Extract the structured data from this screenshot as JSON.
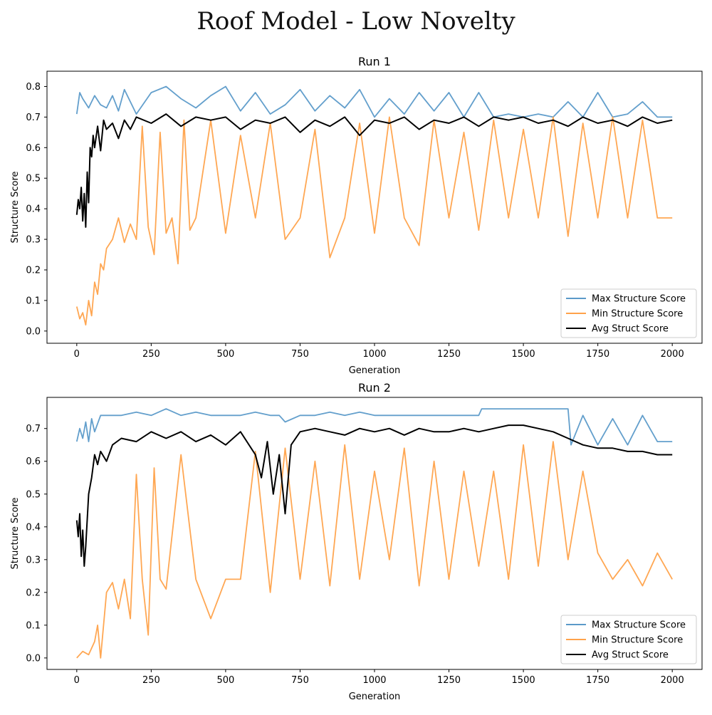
{
  "figure": {
    "title": "Roof Model - Low Novelty"
  },
  "colors": {
    "max": "#5b9ac9",
    "min": "#ffa24a",
    "avg": "#000000"
  },
  "chart_data": [
    {
      "type": "line",
      "title": "Run 1",
      "xlabel": "Generation",
      "ylabel": "Structure Score",
      "xlim": [
        -100,
        2100
      ],
      "ylim": [
        -0.04,
        0.85
      ],
      "xticks": [
        0,
        250,
        500,
        750,
        1000,
        1250,
        1500,
        1750,
        2000
      ],
      "yticks": [
        0.0,
        0.1,
        0.2,
        0.3,
        0.4,
        0.5,
        0.6,
        0.7,
        0.8
      ],
      "ytick_labels": [
        "0.0",
        "0.1",
        "0.2",
        "0.3",
        "0.4",
        "0.5",
        "0.6",
        "0.7",
        "0.8"
      ],
      "legend_position": "lower-right",
      "series": [
        {
          "name": "Max Structure Score",
          "key": "max",
          "x": [
            0,
            10,
            20,
            40,
            60,
            80,
            100,
            120,
            140,
            160,
            200,
            250,
            300,
            350,
            400,
            450,
            500,
            550,
            600,
            650,
            700,
            750,
            800,
            850,
            900,
            950,
            1000,
            1050,
            1100,
            1150,
            1200,
            1250,
            1300,
            1350,
            1400,
            1450,
            1500,
            1550,
            1600,
            1650,
            1700,
            1750,
            1800,
            1850,
            1900,
            1950,
            2000
          ],
          "y": [
            0.71,
            0.78,
            0.76,
            0.73,
            0.77,
            0.74,
            0.73,
            0.77,
            0.72,
            0.79,
            0.71,
            0.78,
            0.8,
            0.76,
            0.73,
            0.77,
            0.8,
            0.72,
            0.78,
            0.71,
            0.74,
            0.79,
            0.72,
            0.77,
            0.73,
            0.79,
            0.7,
            0.76,
            0.71,
            0.78,
            0.72,
            0.78,
            0.7,
            0.78,
            0.7,
            0.71,
            0.7,
            0.71,
            0.7,
            0.75,
            0.7,
            0.78,
            0.7,
            0.71,
            0.75,
            0.7,
            0.7
          ]
        },
        {
          "name": "Min Structure Score",
          "key": "min",
          "x": [
            0,
            10,
            20,
            30,
            40,
            50,
            60,
            70,
            80,
            90,
            100,
            120,
            140,
            160,
            180,
            200,
            220,
            240,
            260,
            280,
            300,
            320,
            340,
            360,
            380,
            400,
            450,
            500,
            550,
            600,
            650,
            700,
            750,
            800,
            850,
            900,
            950,
            1000,
            1050,
            1100,
            1150,
            1200,
            1250,
            1300,
            1350,
            1400,
            1450,
            1500,
            1550,
            1600,
            1650,
            1700,
            1750,
            1800,
            1850,
            1900,
            1950,
            2000
          ],
          "y": [
            0.08,
            0.04,
            0.06,
            0.02,
            0.1,
            0.05,
            0.16,
            0.12,
            0.22,
            0.2,
            0.27,
            0.3,
            0.37,
            0.29,
            0.35,
            0.3,
            0.67,
            0.34,
            0.25,
            0.65,
            0.32,
            0.37,
            0.22,
            0.69,
            0.33,
            0.37,
            0.69,
            0.32,
            0.64,
            0.37,
            0.68,
            0.3,
            0.37,
            0.66,
            0.24,
            0.37,
            0.68,
            0.32,
            0.7,
            0.37,
            0.28,
            0.69,
            0.37,
            0.65,
            0.33,
            0.69,
            0.37,
            0.66,
            0.37,
            0.7,
            0.31,
            0.68,
            0.37,
            0.7,
            0.37,
            0.69,
            0.37,
            0.37
          ]
        },
        {
          "name": "Avg Struct Score",
          "key": "avg",
          "x": [
            0,
            5,
            10,
            15,
            20,
            25,
            30,
            35,
            40,
            45,
            50,
            55,
            60,
            70,
            80,
            90,
            100,
            120,
            140,
            160,
            180,
            200,
            250,
            300,
            350,
            400,
            450,
            500,
            550,
            600,
            650,
            700,
            750,
            800,
            850,
            900,
            950,
            1000,
            1050,
            1100,
            1150,
            1200,
            1250,
            1300,
            1350,
            1400,
            1450,
            1500,
            1550,
            1600,
            1650,
            1700,
            1750,
            1800,
            1850,
            1900,
            1950,
            2000
          ],
          "y": [
            0.38,
            0.43,
            0.4,
            0.47,
            0.36,
            0.45,
            0.34,
            0.52,
            0.42,
            0.6,
            0.57,
            0.64,
            0.6,
            0.67,
            0.59,
            0.69,
            0.66,
            0.68,
            0.63,
            0.69,
            0.66,
            0.7,
            0.68,
            0.71,
            0.67,
            0.7,
            0.69,
            0.7,
            0.66,
            0.69,
            0.68,
            0.7,
            0.65,
            0.69,
            0.67,
            0.7,
            0.64,
            0.69,
            0.68,
            0.7,
            0.66,
            0.69,
            0.68,
            0.7,
            0.67,
            0.7,
            0.69,
            0.7,
            0.68,
            0.69,
            0.67,
            0.7,
            0.68,
            0.69,
            0.67,
            0.7,
            0.68,
            0.69
          ]
        }
      ]
    },
    {
      "type": "line",
      "title": "Run 2",
      "xlabel": "Generation",
      "ylabel": "Structure Score",
      "xlim": [
        -100,
        2100
      ],
      "ylim": [
        -0.035,
        0.795
      ],
      "xticks": [
        0,
        250,
        500,
        750,
        1000,
        1250,
        1500,
        1750,
        2000
      ],
      "yticks": [
        0.0,
        0.1,
        0.2,
        0.3,
        0.4,
        0.5,
        0.6,
        0.7
      ],
      "ytick_labels": [
        "0.0",
        "0.1",
        "0.2",
        "0.3",
        "0.4",
        "0.5",
        "0.6",
        "0.7"
      ],
      "legend_position": "lower-right",
      "series": [
        {
          "name": "Max Structure Score",
          "key": "max",
          "x": [
            0,
            10,
            20,
            30,
            40,
            50,
            60,
            80,
            100,
            150,
            200,
            250,
            300,
            350,
            400,
            450,
            500,
            550,
            600,
            650,
            680,
            700,
            750,
            800,
            850,
            900,
            950,
            1000,
            1050,
            1100,
            1150,
            1200,
            1250,
            1300,
            1350,
            1360,
            1400,
            1450,
            1500,
            1550,
            1600,
            1650,
            1660,
            1700,
            1750,
            1800,
            1850,
            1900,
            1950,
            2000
          ],
          "y": [
            0.66,
            0.7,
            0.67,
            0.72,
            0.66,
            0.73,
            0.69,
            0.74,
            0.74,
            0.74,
            0.75,
            0.74,
            0.76,
            0.74,
            0.75,
            0.74,
            0.74,
            0.74,
            0.75,
            0.74,
            0.74,
            0.72,
            0.74,
            0.74,
            0.75,
            0.74,
            0.75,
            0.74,
            0.74,
            0.74,
            0.74,
            0.74,
            0.74,
            0.74,
            0.74,
            0.76,
            0.76,
            0.76,
            0.76,
            0.76,
            0.76,
            0.76,
            0.65,
            0.74,
            0.65,
            0.73,
            0.65,
            0.74,
            0.66,
            0.66
          ]
        },
        {
          "name": "Min Structure Score",
          "key": "min",
          "x": [
            0,
            20,
            40,
            60,
            70,
            80,
            100,
            120,
            140,
            160,
            180,
            200,
            220,
            240,
            260,
            280,
            300,
            350,
            400,
            450,
            500,
            550,
            600,
            650,
            700,
            750,
            800,
            850,
            900,
            950,
            1000,
            1050,
            1100,
            1150,
            1200,
            1250,
            1300,
            1350,
            1400,
            1450,
            1500,
            1550,
            1600,
            1650,
            1700,
            1750,
            1800,
            1850,
            1900,
            1950,
            2000
          ],
          "y": [
            0.0,
            0.02,
            0.01,
            0.05,
            0.1,
            0.0,
            0.2,
            0.23,
            0.15,
            0.24,
            0.12,
            0.56,
            0.24,
            0.07,
            0.58,
            0.24,
            0.21,
            0.62,
            0.24,
            0.12,
            0.24,
            0.24,
            0.63,
            0.2,
            0.64,
            0.24,
            0.6,
            0.22,
            0.65,
            0.24,
            0.57,
            0.3,
            0.64,
            0.22,
            0.6,
            0.24,
            0.57,
            0.28,
            0.57,
            0.24,
            0.65,
            0.28,
            0.66,
            0.3,
            0.57,
            0.32,
            0.24,
            0.3,
            0.22,
            0.32,
            0.24
          ]
        },
        {
          "name": "Avg Struct Score",
          "key": "avg",
          "x": [
            0,
            5,
            10,
            15,
            20,
            25,
            30,
            40,
            50,
            60,
            70,
            80,
            100,
            120,
            150,
            200,
            250,
            300,
            350,
            400,
            450,
            500,
            550,
            600,
            620,
            640,
            660,
            680,
            700,
            720,
            750,
            800,
            850,
            900,
            950,
            1000,
            1050,
            1100,
            1150,
            1200,
            1250,
            1300,
            1350,
            1400,
            1450,
            1500,
            1550,
            1600,
            1650,
            1700,
            1750,
            1800,
            1850,
            1900,
            1950,
            2000
          ],
          "y": [
            0.42,
            0.37,
            0.44,
            0.31,
            0.39,
            0.28,
            0.34,
            0.5,
            0.55,
            0.62,
            0.59,
            0.63,
            0.6,
            0.65,
            0.67,
            0.66,
            0.69,
            0.67,
            0.69,
            0.66,
            0.68,
            0.65,
            0.69,
            0.62,
            0.55,
            0.66,
            0.5,
            0.62,
            0.44,
            0.65,
            0.69,
            0.7,
            0.69,
            0.68,
            0.7,
            0.69,
            0.7,
            0.68,
            0.7,
            0.69,
            0.69,
            0.7,
            0.69,
            0.7,
            0.71,
            0.71,
            0.7,
            0.69,
            0.67,
            0.65,
            0.64,
            0.64,
            0.63,
            0.63,
            0.62,
            0.62
          ]
        }
      ]
    }
  ]
}
